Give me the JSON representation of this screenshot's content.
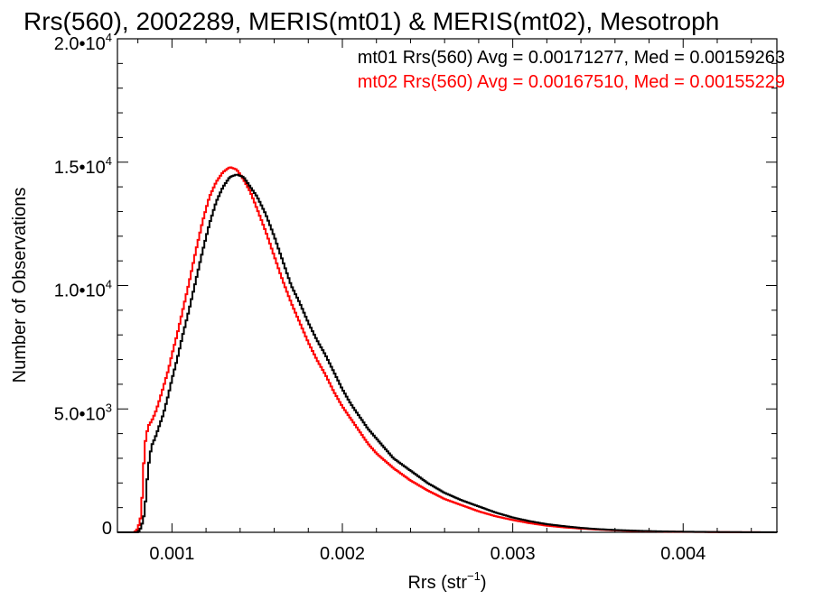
{
  "chart_data": {
    "type": "line",
    "title": "Rrs(560), 2002289, MERIS(mt01) & MERIS(mt02), Mesotroph",
    "xlabel": "Rrs (str",
    "xlabel_sup": "−1",
    "xlabel_close": ")",
    "ylabel": "Number of Observations",
    "xlim": [
      0.00068,
      0.00455
    ],
    "ylim": [
      0,
      20000
    ],
    "grid": false,
    "legend_placement": "top-right",
    "x_ticks": [
      {
        "value": 0.001,
        "label": "0.001"
      },
      {
        "value": 0.002,
        "label": "0.002"
      },
      {
        "value": 0.003,
        "label": "0.003"
      },
      {
        "value": 0.004,
        "label": "0.004"
      }
    ],
    "y_ticks": [
      {
        "value": 0,
        "mant": "0",
        "exp": ""
      },
      {
        "value": 5000,
        "mant": "5.0•10",
        "exp": "3"
      },
      {
        "value": 10000,
        "mant": "1.0•10",
        "exp": "4"
      },
      {
        "value": 15000,
        "mant": "1.5•10",
        "exp": "4"
      },
      {
        "value": 20000,
        "mant": "2.0•10",
        "exp": "4"
      }
    ],
    "series": [
      {
        "name": "mt01",
        "stats": "mt01 Rrs(560) Avg = 0.00171277, Med = 0.00159263",
        "color": "#000000",
        "x": [
          0.00068,
          0.0008,
          0.00082,
          0.00084,
          0.00086,
          0.00088,
          0.0009,
          0.00092,
          0.00095,
          0.00098,
          0.001,
          0.00103,
          0.00106,
          0.0011,
          0.00114,
          0.00118,
          0.00122,
          0.00126,
          0.0013,
          0.00134,
          0.00138,
          0.00142,
          0.00146,
          0.0015,
          0.00155,
          0.0016,
          0.00165,
          0.0017,
          0.00175,
          0.0018,
          0.00185,
          0.0019,
          0.00195,
          0.002,
          0.00205,
          0.0021,
          0.00215,
          0.0022,
          0.00225,
          0.0023,
          0.0024,
          0.0025,
          0.0026,
          0.0027,
          0.0028,
          0.0029,
          0.003,
          0.0031,
          0.0032,
          0.0033,
          0.0034,
          0.0035,
          0.0036,
          0.0037,
          0.0038,
          0.0039,
          0.004,
          0.0041,
          0.0042,
          0.0043,
          0.0044,
          0.00455
        ],
        "values": [
          0,
          0,
          200,
          800,
          2600,
          3500,
          3800,
          4200,
          4800,
          5600,
          6200,
          7000,
          7900,
          9000,
          10200,
          11400,
          12500,
          13400,
          14000,
          14400,
          14500,
          14400,
          14000,
          13600,
          12900,
          12000,
          11000,
          10000,
          9300,
          8500,
          7800,
          7200,
          6500,
          5800,
          5200,
          4700,
          4200,
          3800,
          3400,
          3000,
          2500,
          2000,
          1600,
          1300,
          1050,
          800,
          600,
          450,
          330,
          250,
          180,
          130,
          95,
          70,
          50,
          35,
          25,
          18,
          12,
          8,
          5,
          2
        ]
      },
      {
        "name": "mt02",
        "stats": "mt02 Rrs(560) Avg = 0.00167510, Med = 0.00155229",
        "color": "#ff0000",
        "x": [
          0.00068,
          0.00078,
          0.0008,
          0.00082,
          0.00084,
          0.00086,
          0.00088,
          0.0009,
          0.00092,
          0.00095,
          0.00098,
          0.001,
          0.00103,
          0.00106,
          0.0011,
          0.00114,
          0.00118,
          0.00122,
          0.00126,
          0.0013,
          0.00134,
          0.00138,
          0.00142,
          0.00146,
          0.0015,
          0.00155,
          0.0016,
          0.00165,
          0.0017,
          0.00175,
          0.0018,
          0.00185,
          0.0019,
          0.00195,
          0.002,
          0.00205,
          0.0021,
          0.00215,
          0.0022,
          0.00225,
          0.0023,
          0.0024,
          0.0025,
          0.0026,
          0.0027,
          0.0028,
          0.0029,
          0.003,
          0.0031,
          0.0032,
          0.0033,
          0.0034,
          0.0035,
          0.0036,
          0.0037,
          0.0038,
          0.0039,
          0.004,
          0.0041,
          0.0042,
          0.0043,
          0.0044,
          0.00455
        ],
        "values": [
          0,
          0,
          150,
          700,
          3500,
          4300,
          4500,
          4800,
          5200,
          5900,
          6600,
          7200,
          8000,
          8900,
          10100,
          11400,
          12600,
          13600,
          14200,
          14600,
          14800,
          14700,
          14300,
          13800,
          13100,
          12200,
          11200,
          10200,
          9300,
          8500,
          7700,
          7000,
          6400,
          5700,
          5100,
          4600,
          4100,
          3600,
          3200,
          2900,
          2600,
          2100,
          1700,
          1350,
          1100,
          850,
          650,
          500,
          370,
          270,
          200,
          150,
          110,
          80,
          55,
          40,
          28,
          20,
          14,
          9,
          6,
          3,
          1
        ]
      }
    ]
  }
}
